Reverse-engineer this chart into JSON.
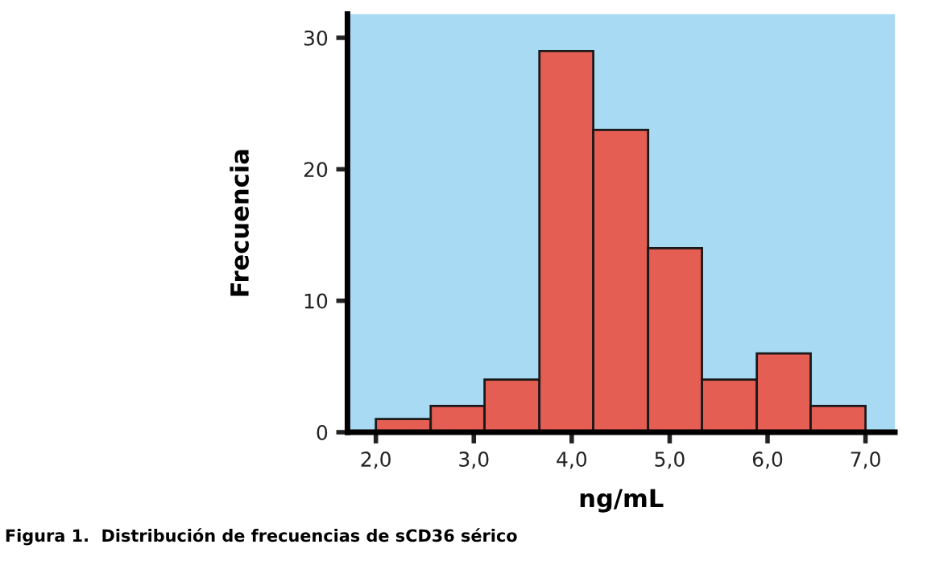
{
  "chart_data": {
    "type": "histogram",
    "bins": [
      2.0,
      2.56,
      3.11,
      3.67,
      4.22,
      4.78,
      5.33,
      5.89,
      6.44,
      7.0
    ],
    "values": [
      1,
      2,
      4,
      29,
      23,
      14,
      4,
      6,
      2
    ],
    "color": "#e45e54",
    "xlabel": "ng/mL",
    "ylabel": "Frecuencia",
    "xlim": [
      1.71,
      7.3
    ],
    "ylim": [
      0,
      31.8
    ],
    "xticks": [
      {
        "value": 2,
        "label": "2,0"
      },
      {
        "value": 3,
        "label": "3,0"
      },
      {
        "value": 4,
        "label": "4,0"
      },
      {
        "value": 5,
        "label": "5,0"
      },
      {
        "value": 6,
        "label": "6,0"
      },
      {
        "value": 7,
        "label": "7,0"
      }
    ],
    "yticks": [
      0,
      10,
      20,
      30
    ],
    "grid": false,
    "annotations": [
      "Figura 1.  Distribución de frecuencias de sCD36 sérico"
    ]
  }
}
